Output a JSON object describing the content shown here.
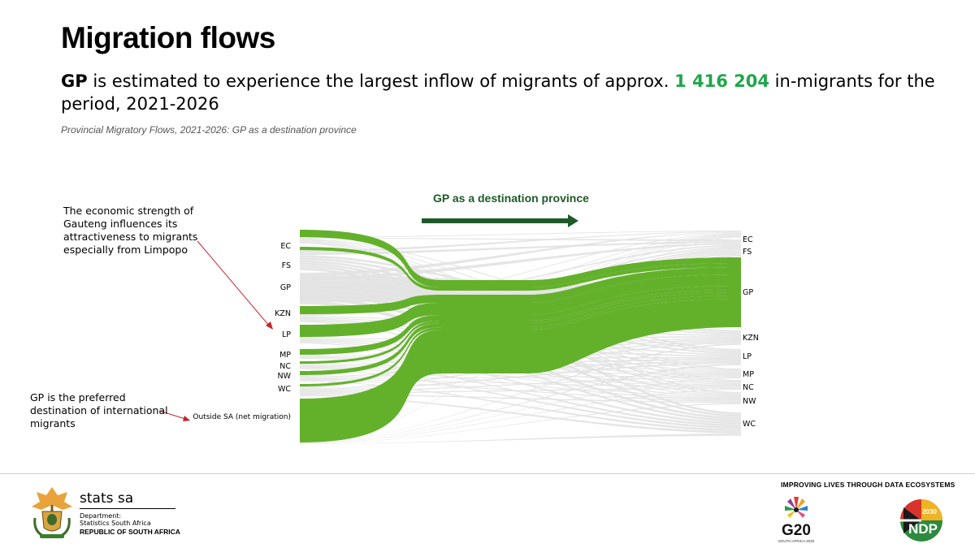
{
  "header": {
    "title": "Migration flows",
    "headline_gp": "GP",
    "headline_part1": " is estimated to experience the largest inflow of migrants of approx. ",
    "headline_number": "1 416 204",
    "headline_part2": " in-migrants for the period, 2021-2026",
    "subtitle": "Provincial Migratory Flows, 2021-2026:  GP as a destination province"
  },
  "diagram": {
    "heading": "GP as a destination province",
    "annotation_limpopo": "The economic strength of Gauteng influences its attractiveness to migrants especially from Limpopo",
    "annotation_international": "GP is the preferred destination of international migrants",
    "source_labels": [
      "EC",
      "FS",
      "GP",
      "KZN",
      "LP",
      "MP",
      "NC",
      "NW",
      "WC",
      "Outside SA (net migration)"
    ],
    "destination_labels": [
      "EC",
      "FS",
      "GP",
      "KZN",
      "LP",
      "MP",
      "NC",
      "NW",
      "WC"
    ],
    "highlight_destination": "GP",
    "colors": {
      "highlight": "#63b12b",
      "background_flow": "#e2e2e2",
      "arrow": "#1e5a28",
      "annotation_arrow": "#c0262d",
      "headline_number": "#1fa64a"
    }
  },
  "footer": {
    "brand_name": "stats sa",
    "department_line1": "Department:",
    "department_line2": "Statistics South Africa",
    "republic": "REPUBLIC OF SOUTH AFRICA",
    "tagline": "IMPROVING LIVES THROUGH DATA ECOSYSTEMS",
    "g20_text": "G20",
    "g20_sub": "SOUTH AFRICA 2025",
    "ndp_text": "NDP",
    "ndp_year": "2030"
  }
}
